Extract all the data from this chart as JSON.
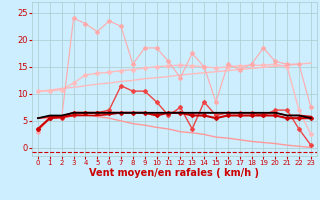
{
  "x": [
    0,
    1,
    2,
    3,
    4,
    5,
    6,
    7,
    8,
    9,
    10,
    11,
    12,
    13,
    14,
    15,
    16,
    17,
    18,
    19,
    20,
    21,
    22,
    23
  ],
  "background_color": "#cceeff",
  "grid_color": "#aacccc",
  "xlabel": "Vent moyen/en rafales ( km/h )",
  "xlabel_color": "#cc0000",
  "xlabel_fontsize": 7,
  "tick_color": "#cc0000",
  "tick_fontsize": 5,
  "ylim": [
    -1.5,
    27
  ],
  "xlim": [
    -0.5,
    23.5
  ],
  "yticks": [
    0,
    5,
    10,
    15,
    20,
    25
  ],
  "line_smooth1_y": [
    10.5,
    10.7,
    11.0,
    11.2,
    11.5,
    11.8,
    12.0,
    12.3,
    12.5,
    12.8,
    13.0,
    13.2,
    13.5,
    13.7,
    13.9,
    14.1,
    14.3,
    14.5,
    14.7,
    14.9,
    15.1,
    15.3,
    15.5,
    15.7
  ],
  "line_smooth1_color": "#ffbbbb",
  "line_smooth1_lw": 1.0,
  "line_smooth2_y": [
    10.5,
    10.5,
    10.8,
    12.0,
    13.5,
    13.8,
    14.0,
    14.3,
    14.5,
    14.8,
    15.0,
    15.2,
    15.3,
    15.2,
    15.0,
    14.8,
    15.0,
    15.2,
    15.3,
    15.3,
    15.5,
    15.0,
    7.0,
    2.5
  ],
  "line_smooth2_color": "#ffbbbb",
  "line_smooth2_lw": 1.0,
  "line_smooth2_marker": "D",
  "line_smooth2_markersize": 2,
  "line_spiky_y": [
    3.0,
    5.5,
    5.5,
    24.0,
    23.0,
    21.5,
    23.5,
    22.5,
    15.5,
    18.5,
    18.5,
    16.0,
    13.0,
    17.5,
    15.0,
    8.5,
    15.5,
    14.5,
    15.5,
    18.5,
    16.0,
    15.5,
    15.5,
    7.5
  ],
  "line_spiky_color": "#ffaaaa",
  "line_spiky_lw": 0.8,
  "line_spiky_marker": "D",
  "line_spiky_markersize": 2,
  "line_mid_y": [
    3.5,
    5.5,
    5.5,
    6.0,
    6.5,
    6.5,
    7.0,
    11.5,
    10.5,
    10.5,
    8.5,
    6.0,
    7.5,
    3.5,
    8.5,
    6.0,
    6.5,
    6.5,
    6.5,
    6.0,
    7.0,
    7.0,
    3.5,
    0.5
  ],
  "line_mid_color": "#ee4444",
  "line_mid_lw": 1.0,
  "line_mid_marker": "D",
  "line_mid_markersize": 2,
  "line_flat1_y": [
    3.5,
    5.5,
    5.8,
    6.5,
    6.5,
    6.5,
    6.5,
    6.5,
    6.5,
    6.5,
    6.0,
    6.5,
    6.5,
    6.0,
    6.0,
    5.5,
    6.0,
    6.0,
    6.0,
    6.0,
    6.0,
    5.5,
    5.5,
    5.5
  ],
  "line_flat1_color": "#cc0000",
  "line_flat1_lw": 1.5,
  "line_flat1_marker": "D",
  "line_flat1_markersize": 2,
  "line_black_y": [
    5.5,
    6.0,
    6.0,
    6.5,
    6.5,
    6.5,
    6.5,
    6.5,
    6.5,
    6.5,
    6.5,
    6.5,
    6.5,
    6.5,
    6.5,
    6.5,
    6.5,
    6.5,
    6.5,
    6.5,
    6.5,
    6.0,
    6.0,
    5.5
  ],
  "line_black_color": "#000000",
  "line_black_lw": 1.2,
  "line_red2_y": [
    5.5,
    5.8,
    5.8,
    6.0,
    6.0,
    6.0,
    6.2,
    6.5,
    6.5,
    6.5,
    6.5,
    6.5,
    6.5,
    6.5,
    6.5,
    6.5,
    6.5,
    6.5,
    6.5,
    6.5,
    6.5,
    6.0,
    6.0,
    5.8
  ],
  "line_red2_color": "#cc0000",
  "line_red2_lw": 1.2,
  "line_diag_y": [
    5.5,
    5.5,
    5.5,
    6.0,
    6.2,
    5.8,
    5.5,
    5.0,
    4.5,
    4.2,
    3.8,
    3.5,
    3.0,
    2.8,
    2.5,
    2.0,
    1.8,
    1.5,
    1.2,
    1.0,
    0.8,
    0.5,
    0.3,
    0.1
  ],
  "line_diag_color": "#ff9999",
  "line_diag_lw": 1.0,
  "dashed_y": -0.8,
  "dashed_color": "#cc0000"
}
